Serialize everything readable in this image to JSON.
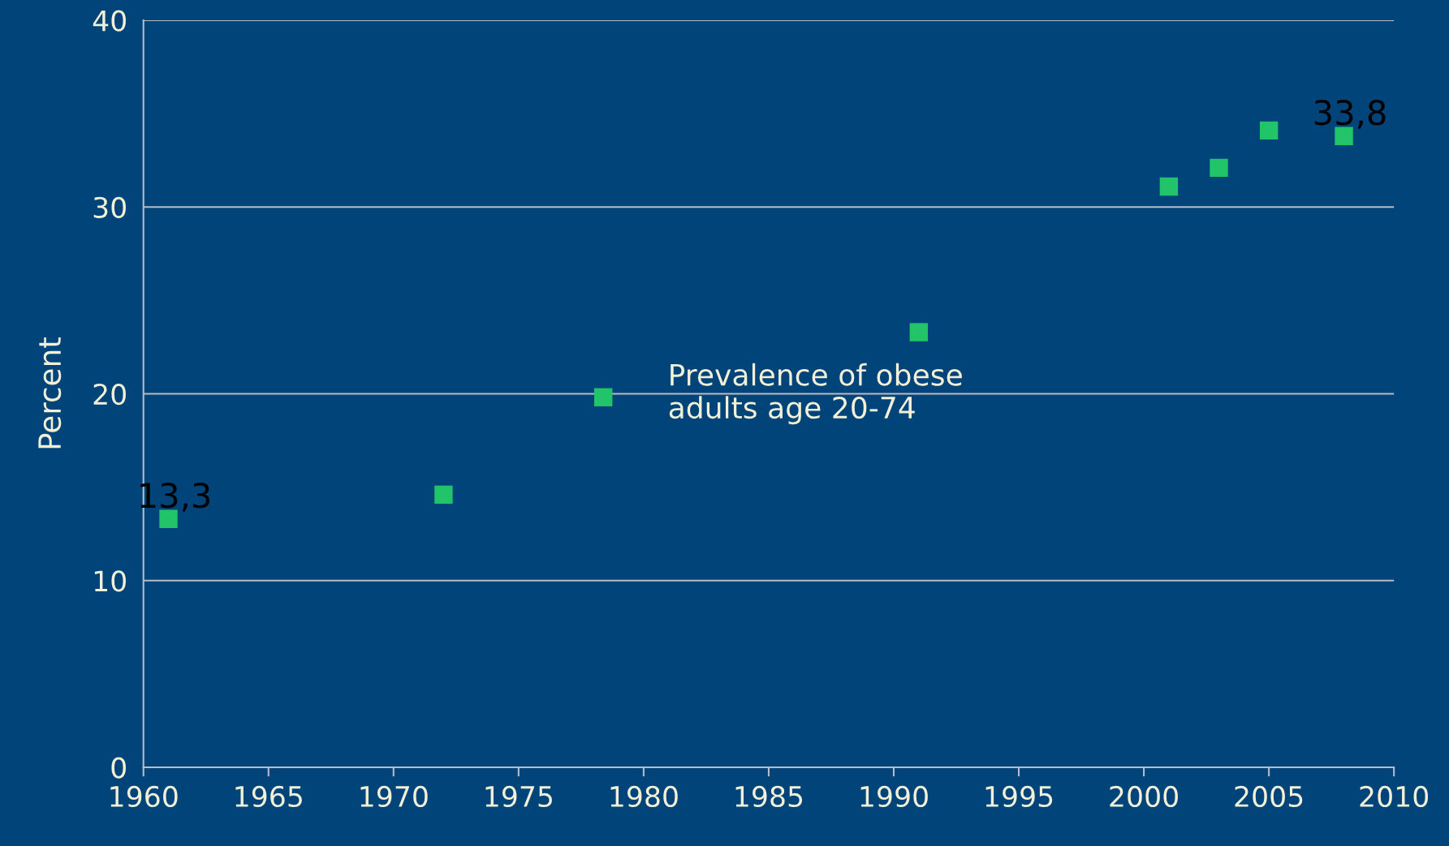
{
  "chart_data": {
    "type": "scatter",
    "ylabel": "Percent",
    "x": [
      1961,
      1972,
      1991,
      2001,
      2003,
      2005,
      2008
    ],
    "series": [
      {
        "name": "Prevalence of obese\nadults age 20-74",
        "color": "#22c46a",
        "values": [
          13.3,
          14.6,
          23.3,
          31.1,
          32.1,
          34.1,
          33.8
        ],
        "value_labels": [
          "13,3",
          null,
          null,
          null,
          null,
          null,
          "33,8"
        ]
      }
    ],
    "xlim": [
      1960,
      2010
    ],
    "xticks": [
      1960,
      1965,
      1970,
      1975,
      1980,
      1985,
      1990,
      1995,
      2000,
      2005,
      2010
    ],
    "ylim": [
      0,
      40
    ],
    "yticks": [
      0,
      10,
      20,
      30,
      40
    ],
    "grid": "y",
    "legend": "center",
    "marker": "square"
  }
}
